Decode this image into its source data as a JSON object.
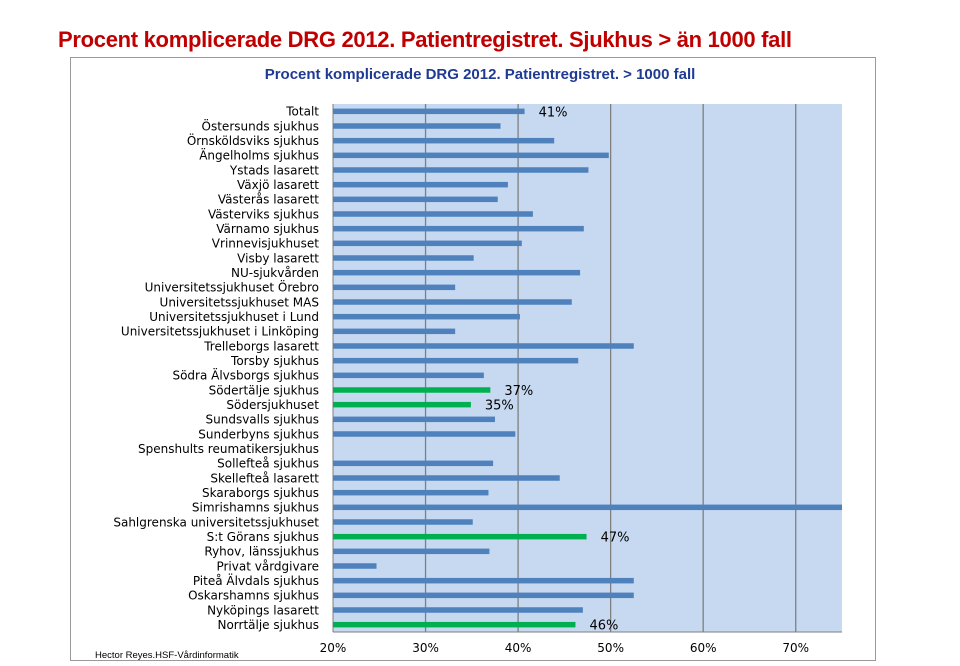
{
  "page": {
    "title": "Procent komplicerade DRG 2012. Patientregistret.  Sjukhus > än 1000 fall",
    "credit": "Hector Reyes.HSF-Vårdinformatik"
  },
  "colors": {
    "blue": "#4f81bd",
    "green": "#00b050",
    "plot_bg": "#c6d9f1",
    "grid": "#7f7f7f"
  },
  "chart_data": {
    "type": "bar",
    "orientation": "horizontal",
    "title": "Procent komplicerade DRG 2012. Patientregistret. > 1000 fall",
    "xlabel": "",
    "ylabel": "",
    "xlim": [
      0.2,
      0.75
    ],
    "xticks": [
      0.2,
      0.3,
      0.4,
      0.5,
      0.6,
      0.7
    ],
    "xtick_labels": [
      "20%",
      "30%",
      "40%",
      "50%",
      "60%",
      "70%"
    ],
    "grid": "vertical",
    "categories": [
      "Totalt",
      "Östersunds sjukhus",
      "Örnsköldsviks sjukhus",
      "Ängelholms sjukhus",
      "Ystads lasarett",
      "Växjö lasarett",
      "Västerås lasarett",
      "Västerviks sjukhus",
      "Värnamo sjukhus",
      "Vrinnevisjukhuset",
      "Visby lasarett",
      "NU-sjukvården",
      "Universitetssjukhuset Örebro",
      "Universitetssjukhuset MAS",
      "Universitetssjukhuset i Lund",
      "Universitetssjukhuset i Linköping",
      "Trelleborgs lasarett",
      "Torsby sjukhus",
      "Södra Älvsborgs sjukhus",
      "Södertälje sjukhus",
      "Södersjukhuset",
      "Sundsvalls sjukhus",
      "Sunderbyns sjukhus",
      "Spenshults reumatikersjukhus",
      "Sollefteå sjukhus",
      "Skellefteå lasarett",
      "Skaraborgs sjukhus",
      "Simrishamns sjukhus",
      "Sahlgrenska universitetssjukhuset",
      "S:t Görans sjukhus",
      "Ryhov, länssjukhus",
      "Privat vårdgivare",
      "Piteå Älvdals sjukhus",
      "Oskarshamns sjukhus",
      "Nyköpings lasarett",
      "Norrtälje sjukhus"
    ],
    "values": [
      0.407,
      0.381,
      0.439,
      0.498,
      0.476,
      0.389,
      0.378,
      0.416,
      0.471,
      0.404,
      0.352,
      0.467,
      0.332,
      0.458,
      0.402,
      0.332,
      0.525,
      0.465,
      0.363,
      0.37,
      0.349,
      0.375,
      0.397,
      0.2,
      0.373,
      0.445,
      0.368,
      0.755,
      0.351,
      0.474,
      0.369,
      0.247,
      0.525,
      0.525,
      0.47,
      0.462
    ],
    "highlight": [
      "Södertälje sjukhus",
      "Södersjukhuset",
      "S:t Görans sjukhus",
      "Norrtälje sjukhus"
    ],
    "data_labels": [
      {
        "category": "Totalt",
        "text": "41%"
      },
      {
        "category": "Södertälje sjukhus",
        "text": "37%"
      },
      {
        "category": "Södersjukhuset",
        "text": "35%"
      },
      {
        "category": "S:t Görans sjukhus",
        "text": "47%"
      },
      {
        "category": "Norrtälje sjukhus",
        "text": "46%"
      }
    ]
  }
}
